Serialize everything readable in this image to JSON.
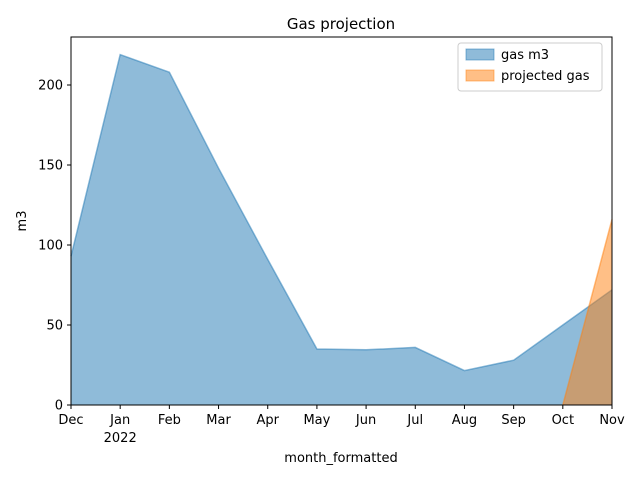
{
  "chart_data": {
    "type": "area",
    "title": "Gas projection",
    "xlabel": "month_formatted",
    "ylabel": "m3",
    "x": [
      "Dec",
      "Jan",
      "Feb",
      "Mar",
      "Apr",
      "May",
      "Jun",
      "Jul",
      "Aug",
      "Sep",
      "Oct",
      "Nov"
    ],
    "year_label": {
      "under": "Jan",
      "text": "2022"
    },
    "ylim": [
      0,
      230
    ],
    "yticks": [
      0,
      50,
      100,
      150,
      200
    ],
    "stacked": false,
    "grid": false,
    "legend_position": "top-right",
    "series": [
      {
        "name": "gas m3",
        "color": "#1f77b4",
        "values": [
          93,
          219,
          208,
          148,
          91,
          35,
          34.5,
          36,
          21.5,
          28,
          50,
          72
        ]
      },
      {
        "name": "projected gas",
        "color": "#ff7f0e",
        "values": [
          null,
          null,
          null,
          null,
          null,
          null,
          null,
          null,
          null,
          null,
          0,
          116
        ]
      }
    ]
  }
}
